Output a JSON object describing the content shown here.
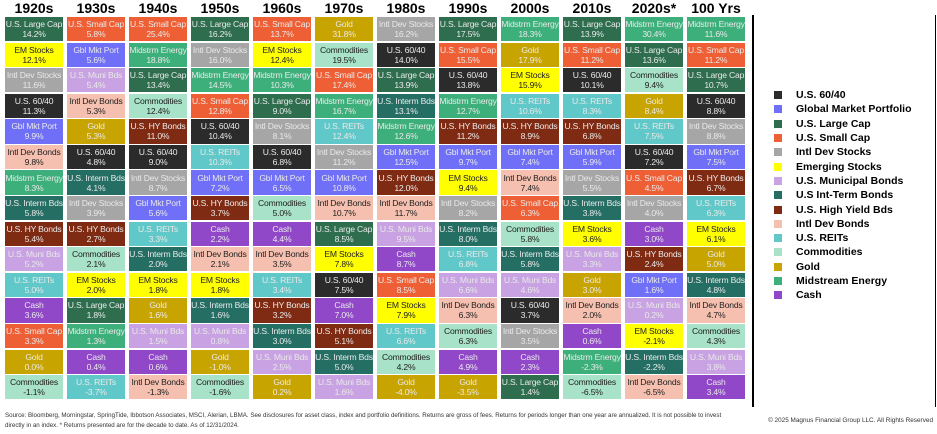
{
  "assets": {
    "6040": {
      "label": "U.S. 60/40",
      "legend": "U.S. 60/40",
      "color": "#2b2b2b",
      "dark_text": false
    },
    "gbl": {
      "label": "Gbl Mkt Port",
      "legend": "Global Market Portfolio",
      "color": "#6f6ff7",
      "dark_text": false
    },
    "large": {
      "label": "U.S. Large Cap",
      "legend": "U.S. Large Cap",
      "color": "#2e6e4e",
      "dark_text": false
    },
    "small": {
      "label": "U.S. Small Cap",
      "legend": "U.S. Small Cap",
      "color": "#ef5f35",
      "dark_text": false
    },
    "ids": {
      "label": "Intl Dev Stocks",
      "legend": "Intl Dev Stocks",
      "color": "#a6a6a6",
      "dark_text": false
    },
    "em": {
      "label": "EM Stocks",
      "legend": "Emerging Stocks",
      "color": "#ffff00",
      "dark_text": true
    },
    "muni": {
      "label": "U.S. Muni Bds",
      "legend": "U.S. Municipal Bonds",
      "color": "#c8a2e2",
      "dark_text": false
    },
    "interm": {
      "label": "U.S. Interm Bds",
      "legend": "U.S Int-Term Bonds",
      "color": "#246e64",
      "dark_text": false
    },
    "hy": {
      "label": "U.S. HY Bonds",
      "legend": "U.S. High Yield Bds",
      "color": "#7f2a12",
      "dark_text": false
    },
    "idb": {
      "label": "Intl Dev Bonds",
      "legend": "Intl Dev Bonds",
      "color": "#f6c0b0",
      "dark_text": true
    },
    "reits": {
      "label": "U.S. REITs",
      "legend": "U.S. REITs",
      "color": "#60c8c8",
      "dark_text": false
    },
    "comm": {
      "label": "Commodities",
      "legend": "Commodities",
      "color": "#a8e2c8",
      "dark_text": true
    },
    "gold": {
      "label": "Gold",
      "legend": "Gold",
      "color": "#c8a400",
      "dark_text": false
    },
    "mid": {
      "label": "Midstrm Energy",
      "legend": "Midstream Energy",
      "color": "#3daf7a",
      "dark_text": false
    },
    "cash": {
      "label": "Cash",
      "legend": "Cash",
      "color": "#9048c8",
      "dark_text": false
    }
  },
  "legend_order": [
    "6040",
    "gbl",
    "large",
    "small",
    "ids",
    "em",
    "muni",
    "interm",
    "hy",
    "idb",
    "reits",
    "comm",
    "gold",
    "mid",
    "cash"
  ],
  "chart_data": {
    "type": "table",
    "columns": [
      {
        "header": "1920s",
        "cells": [
          [
            "large",
            "14.2%"
          ],
          [
            "em",
            "12.1%"
          ],
          [
            "ids",
            "11.6%"
          ],
          [
            "6040",
            "11.3%"
          ],
          [
            "gbl",
            "9.9%"
          ],
          [
            "idb",
            "9.8%"
          ],
          [
            "mid",
            "8.3%"
          ],
          [
            "interm",
            "5.8%"
          ],
          [
            "hy",
            "5.4%"
          ],
          [
            "muni",
            "5.2%"
          ],
          [
            "reits",
            "5.0%"
          ],
          [
            "cash",
            "3.6%"
          ],
          [
            "small",
            "3.3%"
          ],
          [
            "gold",
            "0.0%"
          ],
          [
            "comm",
            "-1.1%"
          ]
        ]
      },
      {
        "header": "1930s",
        "cells": [
          [
            "small",
            "5.8%"
          ],
          [
            "gbl",
            "5.6%"
          ],
          [
            "muni",
            "5.4%"
          ],
          [
            "idb",
            "5.3%"
          ],
          [
            "gold",
            "5.3%"
          ],
          [
            "6040",
            "4.8%"
          ],
          [
            "interm",
            "4.1%"
          ],
          [
            "ids",
            "3.9%"
          ],
          [
            "hy",
            "2.7%"
          ],
          [
            "comm",
            "2.1%"
          ],
          [
            "em",
            "2.0%"
          ],
          [
            "large",
            "1.8%"
          ],
          [
            "mid",
            "1.3%"
          ],
          [
            "cash",
            "0.4%"
          ],
          [
            "reits",
            "-3.7%"
          ]
        ]
      },
      {
        "header": "1940s",
        "cells": [
          [
            "small",
            "25.4%"
          ],
          [
            "mid",
            "18.8%"
          ],
          [
            "large",
            "13.4%"
          ],
          [
            "comm",
            "12.4%"
          ],
          [
            "hy",
            "11.0%"
          ],
          [
            "6040",
            "9.0%"
          ],
          [
            "ids",
            "8.7%"
          ],
          [
            "gbl",
            "5.6%"
          ],
          [
            "reits",
            "3.3%"
          ],
          [
            "interm",
            "2.0%"
          ],
          [
            "em",
            "1.8%"
          ],
          [
            "gold",
            "1.6%"
          ],
          [
            "muni",
            "1.5%"
          ],
          [
            "cash",
            "0.6%"
          ],
          [
            "idb",
            "-1.3%"
          ]
        ]
      },
      {
        "header": "1950s",
        "cells": [
          [
            "large",
            "16.2%"
          ],
          [
            "ids",
            "16.0%"
          ],
          [
            "mid",
            "14.5%"
          ],
          [
            "small",
            "12.8%"
          ],
          [
            "6040",
            "10.4%"
          ],
          [
            "reits",
            "10.3%"
          ],
          [
            "gbl",
            "7.2%"
          ],
          [
            "hy",
            "3.7%"
          ],
          [
            "cash",
            "2.2%"
          ],
          [
            "idb",
            "2.1%"
          ],
          [
            "em",
            "1.8%"
          ],
          [
            "interm",
            "1.6%"
          ],
          [
            "muni",
            "0.8%"
          ],
          [
            "gold",
            "-1.0%"
          ],
          [
            "comm",
            "-1.6%"
          ]
        ]
      },
      {
        "header": "1960s",
        "cells": [
          [
            "small",
            "13.7%"
          ],
          [
            "em",
            "12.4%"
          ],
          [
            "mid",
            "10.3%"
          ],
          [
            "large",
            "9.0%"
          ],
          [
            "ids",
            "8.1%"
          ],
          [
            "6040",
            "6.8%"
          ],
          [
            "gbl",
            "6.5%"
          ],
          [
            "comm",
            "5.0%"
          ],
          [
            "cash",
            "4.4%"
          ],
          [
            "idb",
            "3.5%"
          ],
          [
            "reits",
            "3.4%"
          ],
          [
            "hy",
            "3.2%"
          ],
          [
            "interm",
            "3.0%"
          ],
          [
            "muni",
            "2.5%"
          ],
          [
            "gold",
            "0.2%"
          ]
        ]
      },
      {
        "header": "1970s",
        "cells": [
          [
            "gold",
            "31.8%"
          ],
          [
            "comm",
            "19.5%"
          ],
          [
            "small",
            "17.4%"
          ],
          [
            "mid",
            "16.7%"
          ],
          [
            "reits",
            "12.4%"
          ],
          [
            "ids",
            "11.2%"
          ],
          [
            "gbl",
            "10.8%"
          ],
          [
            "idb",
            "10.7%"
          ],
          [
            "large",
            "8.5%"
          ],
          [
            "em",
            "7.8%"
          ],
          [
            "6040",
            "7.5%"
          ],
          [
            "cash",
            "7.0%"
          ],
          [
            "hy",
            "5.1%"
          ],
          [
            "interm",
            "5.0%"
          ],
          [
            "muni",
            "1.6%"
          ]
        ]
      },
      {
        "header": "1980s",
        "cells": [
          [
            "ids",
            "16.2%"
          ],
          [
            "6040",
            "14.0%"
          ],
          [
            "large",
            "13.9%"
          ],
          [
            "interm",
            "13.1%"
          ],
          [
            "mid",
            "12.6%"
          ],
          [
            "gbl",
            "12.5%"
          ],
          [
            "hy",
            "12.0%"
          ],
          [
            "idb",
            "11.7%"
          ],
          [
            "muni",
            "9.5%"
          ],
          [
            "cash",
            "8.7%"
          ],
          [
            "small",
            "8.5%"
          ],
          [
            "em",
            "7.9%"
          ],
          [
            "reits",
            "6.6%"
          ],
          [
            "comm",
            "4.2%"
          ],
          [
            "gold",
            "-4.0%"
          ]
        ]
      },
      {
        "header": "1990s",
        "cells": [
          [
            "large",
            "17.5%"
          ],
          [
            "small",
            "15.5%"
          ],
          [
            "6040",
            "13.8%"
          ],
          [
            "mid",
            "12.7%"
          ],
          [
            "hy",
            "11.2%"
          ],
          [
            "gbl",
            "9.7%"
          ],
          [
            "em",
            "9.4%"
          ],
          [
            "ids",
            "8.2%"
          ],
          [
            "interm",
            "8.0%"
          ],
          [
            "reits",
            "6.8%"
          ],
          [
            "muni",
            "6.6%"
          ],
          [
            "idb",
            "6.3%"
          ],
          [
            "comm",
            "6.3%"
          ],
          [
            "cash",
            "4.9%"
          ],
          [
            "gold",
            "-3.5%"
          ]
        ]
      },
      {
        "header": "2000s",
        "cells": [
          [
            "mid",
            "18.3%"
          ],
          [
            "gold",
            "17.9%"
          ],
          [
            "em",
            "15.9%"
          ],
          [
            "reits",
            "10.6%"
          ],
          [
            "hy",
            "8.9%"
          ],
          [
            "gbl",
            "7.4%"
          ],
          [
            "idb",
            "7.4%"
          ],
          [
            "small",
            "6.3%"
          ],
          [
            "comm",
            "5.8%"
          ],
          [
            "interm",
            "5.8%"
          ],
          [
            "muni",
            "4.6%"
          ],
          [
            "6040",
            "3.7%"
          ],
          [
            "ids",
            "3.5%"
          ],
          [
            "cash",
            "2.3%"
          ],
          [
            "large",
            "1.4%"
          ]
        ]
      },
      {
        "header": "2010s",
        "cells": [
          [
            "large",
            "13.9%"
          ],
          [
            "small",
            "11.2%"
          ],
          [
            "6040",
            "10.1%"
          ],
          [
            "reits",
            "8.3%"
          ],
          [
            "hy",
            "6.8%"
          ],
          [
            "gbl",
            "5.9%"
          ],
          [
            "ids",
            "5.5%"
          ],
          [
            "interm",
            "3.8%"
          ],
          [
            "em",
            "3.6%"
          ],
          [
            "muni",
            "3.3%"
          ],
          [
            "gold",
            "3.0%"
          ],
          [
            "idb",
            "2.0%"
          ],
          [
            "cash",
            "0.6%"
          ],
          [
            "mid",
            "-2.3%"
          ],
          [
            "comm",
            "-6.5%"
          ]
        ]
      },
      {
        "header": "2020s*",
        "cells": [
          [
            "mid",
            "30.4%"
          ],
          [
            "large",
            "13.6%"
          ],
          [
            "comm",
            "9.4%"
          ],
          [
            "gold",
            "8.4%"
          ],
          [
            "reits",
            "7.5%"
          ],
          [
            "6040",
            "7.2%"
          ],
          [
            "small",
            "4.5%"
          ],
          [
            "ids",
            "4.0%"
          ],
          [
            "cash",
            "3.0%"
          ],
          [
            "hy",
            "2.4%"
          ],
          [
            "gbl",
            "1.6%"
          ],
          [
            "muni",
            "0.2%"
          ],
          [
            "em",
            "-2.1%"
          ],
          [
            "interm",
            "-2.2%"
          ],
          [
            "idb",
            "-6.5%"
          ]
        ]
      },
      {
        "header": "100 Yrs",
        "cells": [
          [
            "mid",
            "11.6%"
          ],
          [
            "small",
            "11.2%"
          ],
          [
            "large",
            "10.7%"
          ],
          [
            "6040",
            "8.8%"
          ],
          [
            "ids",
            "8.8%"
          ],
          [
            "gbl",
            "7.5%"
          ],
          [
            "hy",
            "6.7%"
          ],
          [
            "reits",
            "6.3%"
          ],
          [
            "em",
            "6.1%"
          ],
          [
            "gold",
            "5.0%"
          ],
          [
            "interm",
            "4.8%"
          ],
          [
            "idb",
            "4.7%"
          ],
          [
            "comm",
            "4.3%"
          ],
          [
            "muni",
            "3.8%"
          ],
          [
            "cash",
            "3.4%"
          ]
        ]
      }
    ]
  },
  "footer": {
    "source": "Source: Bloomberg, Morningstar, SpringTide, Ibbotson Associates, MSCI, Alerian, LBMA. See disclosures for asset class, index and portfolio definitions. Returns are gross of fees. Returns for periods longer than one year are annualized. It is not possible to invest directly in an index. * Returns presented are for the decade to date. As of 12/31/2024.",
    "copyright": "© 2025 Magnus Financial Group LLC. All Rights Reserved"
  }
}
